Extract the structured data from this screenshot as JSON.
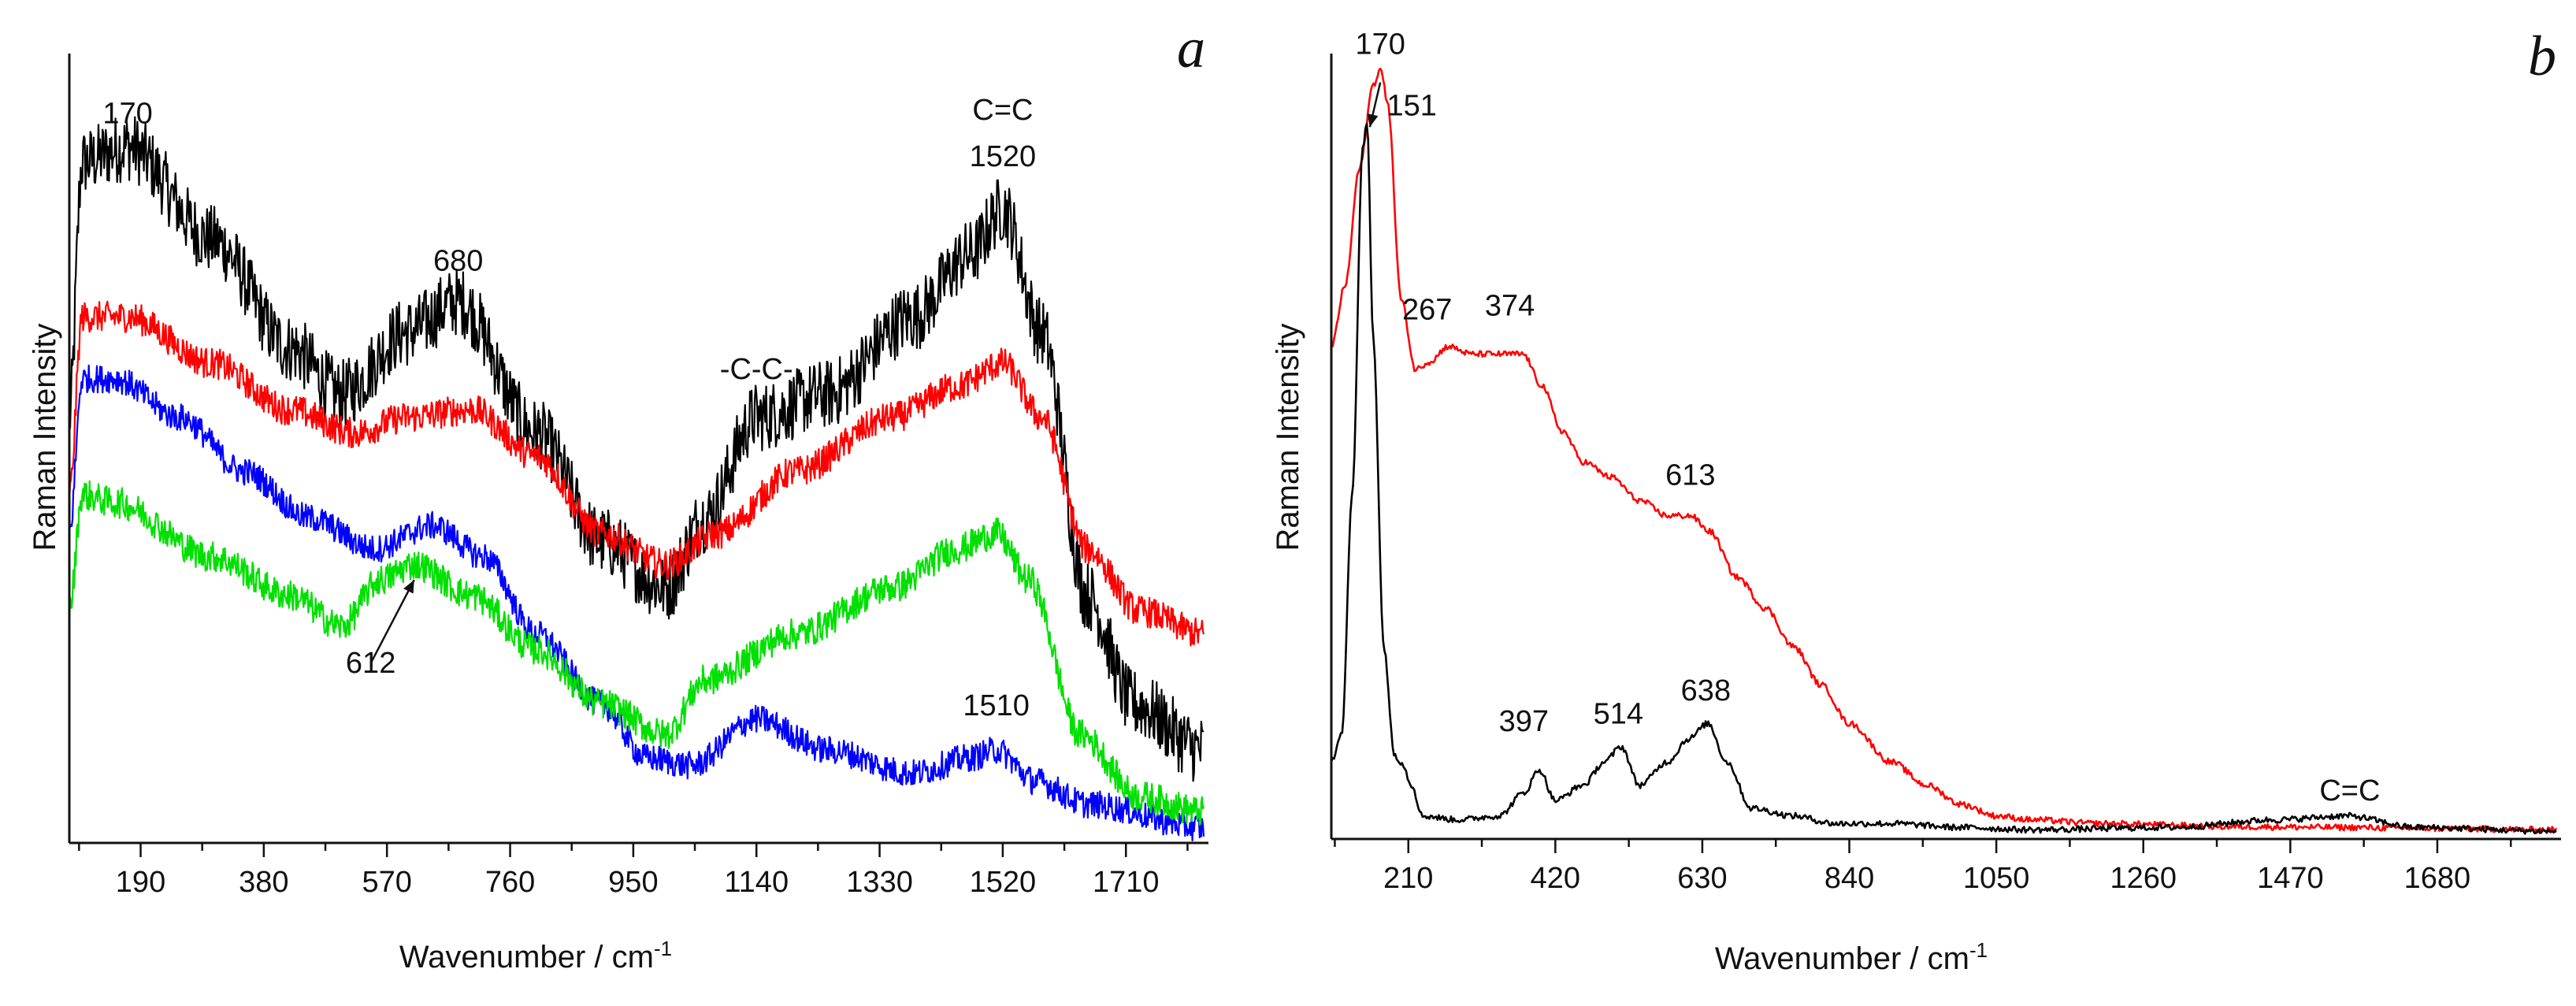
{
  "chart_data": [
    {
      "type": "line",
      "panel_label": "a",
      "xlabel": "Wavenumber / cm",
      "xlabel_sup": "-1",
      "ylabel": "Raman Intensity",
      "xlim": [
        80,
        1830
      ],
      "ylim": [
        0,
        1.0
      ],
      "x_ticks": [
        190,
        380,
        570,
        760,
        950,
        1140,
        1330,
        1520,
        1710
      ],
      "y_ticks_shown": false,
      "grid": false,
      "legend": "none",
      "series": [
        {
          "color": "#000000",
          "noise": 0.045,
          "x": [
            80,
            100,
            170,
            300,
            420,
            500,
            600,
            680,
            800,
            900,
            1000,
            1060,
            1140,
            1250,
            1380,
            1470,
            1520,
            1580,
            1650,
            1720,
            1830
          ],
          "y": [
            0.55,
            0.88,
            0.9,
            0.78,
            0.64,
            0.58,
            0.66,
            0.7,
            0.53,
            0.39,
            0.33,
            0.42,
            0.55,
            0.58,
            0.68,
            0.76,
            0.82,
            0.66,
            0.32,
            0.18,
            0.12
          ]
        },
        {
          "color": "#ff0000",
          "noise": 0.02,
          "x": [
            80,
            100,
            170,
            300,
            420,
            520,
            600,
            700,
            800,
            900,
            1000,
            1080,
            1200,
            1350,
            1450,
            1520,
            1580,
            1650,
            1730,
            1830
          ],
          "y": [
            0.45,
            0.68,
            0.68,
            0.62,
            0.56,
            0.53,
            0.55,
            0.56,
            0.5,
            0.4,
            0.36,
            0.4,
            0.48,
            0.55,
            0.59,
            0.62,
            0.55,
            0.38,
            0.3,
            0.27
          ]
        },
        {
          "color": "#0000ff",
          "noise": 0.018,
          "x": [
            80,
            100,
            150,
            250,
            350,
            450,
            550,
            640,
            720,
            800,
            900,
            970,
            1040,
            1140,
            1250,
            1380,
            1470,
            1510,
            1570,
            1650,
            1830
          ],
          "y": [
            0.4,
            0.6,
            0.6,
            0.55,
            0.48,
            0.42,
            0.38,
            0.41,
            0.37,
            0.27,
            0.18,
            0.11,
            0.1,
            0.16,
            0.12,
            0.09,
            0.11,
            0.12,
            0.08,
            0.05,
            0.02
          ]
        },
        {
          "color": "#00e000",
          "noise": 0.02,
          "x": [
            80,
            100,
            150,
            300,
            420,
            500,
            560,
            612,
            700,
            800,
            900,
            1000,
            1060,
            1200,
            1350,
            1450,
            1510,
            1560,
            1640,
            1730,
            1830
          ],
          "y": [
            0.3,
            0.45,
            0.44,
            0.37,
            0.32,
            0.28,
            0.34,
            0.36,
            0.32,
            0.25,
            0.18,
            0.14,
            0.21,
            0.27,
            0.33,
            0.38,
            0.4,
            0.34,
            0.14,
            0.06,
            0.04
          ]
        }
      ],
      "annotations": [
        {
          "text": "170",
          "x": 170,
          "y": 0.93
        },
        {
          "text": "680",
          "x": 680,
          "y": 0.74
        },
        {
          "text": "-C-C-",
          "x": 1140,
          "y": 0.6
        },
        {
          "text": "C=C",
          "x": 1520,
          "y": 0.935
        },
        {
          "text": "1520",
          "x": 1520,
          "y": 0.875
        },
        {
          "text": "612",
          "x": 545,
          "y": 0.22,
          "arrow_to": [
            612,
            0.34
          ]
        },
        {
          "text": "1510",
          "x": 1510,
          "y": 0.165
        }
      ]
    },
    {
      "type": "line",
      "panel_label": "b",
      "xlabel": "Wavenumber / cm",
      "xlabel_sup": "-1",
      "ylabel": "Raman Intensity",
      "xlim": [
        100,
        1850
      ],
      "ylim": [
        0,
        1.0
      ],
      "x_ticks": [
        210,
        420,
        630,
        840,
        1050,
        1260,
        1470,
        1680
      ],
      "y_ticks_shown": false,
      "grid": false,
      "legend": "none",
      "series": [
        {
          "color": "#ff0000",
          "noise": 0.004,
          "x": [
            100,
            120,
            140,
            160,
            170,
            180,
            200,
            220,
            240,
            267,
            300,
            340,
            374,
            400,
            430,
            460,
            500,
            540,
            580,
            613,
            640,
            680,
            720,
            760,
            800,
            840,
            900,
            950,
            1000,
            1050,
            1100,
            1200,
            1400,
            1550,
            1650,
            1850
          ],
          "y": [
            0.64,
            0.72,
            0.87,
            0.98,
            1.0,
            0.96,
            0.7,
            0.61,
            0.62,
            0.64,
            0.63,
            0.63,
            0.63,
            0.59,
            0.53,
            0.49,
            0.47,
            0.44,
            0.42,
            0.42,
            0.4,
            0.34,
            0.3,
            0.25,
            0.2,
            0.15,
            0.1,
            0.07,
            0.045,
            0.03,
            0.025,
            0.02,
            0.016,
            0.015,
            0.014,
            0.012
          ]
        },
        {
          "color": "#000000",
          "noise": 0.004,
          "x": [
            100,
            115,
            130,
            145,
            151,
            160,
            175,
            190,
            200,
            215,
            230,
            280,
            340,
            375,
            397,
            420,
            460,
            490,
            514,
            540,
            580,
            610,
            638,
            665,
            700,
            760,
            820,
            900,
            1000,
            1100,
            1300,
            1450,
            1550,
            1650,
            1850
          ],
          "y": [
            0.1,
            0.14,
            0.45,
            0.9,
            0.93,
            0.65,
            0.25,
            0.11,
            0.1,
            0.07,
            0.03,
            0.025,
            0.03,
            0.06,
            0.09,
            0.05,
            0.07,
            0.1,
            0.12,
            0.07,
            0.1,
            0.13,
            0.15,
            0.1,
            0.04,
            0.03,
            0.02,
            0.02,
            0.015,
            0.012,
            0.015,
            0.025,
            0.03,
            0.015,
            0.01
          ]
        }
      ],
      "annotations": [
        {
          "text": "170",
          "x": 170,
          "y": 1.02
        },
        {
          "text": "151",
          "x": 215,
          "y": 0.94,
          "arrow_to": [
            155,
            0.925
          ]
        },
        {
          "text": "267",
          "x": 237,
          "y": 0.675
        },
        {
          "text": "374",
          "x": 355,
          "y": 0.68
        },
        {
          "text": "613",
          "x": 613,
          "y": 0.46
        },
        {
          "text": "397",
          "x": 375,
          "y": 0.14
        },
        {
          "text": "514",
          "x": 510,
          "y": 0.15
        },
        {
          "text": "638",
          "x": 635,
          "y": 0.18
        },
        {
          "text": "C=C",
          "x": 1555,
          "y": 0.05
        }
      ]
    }
  ]
}
